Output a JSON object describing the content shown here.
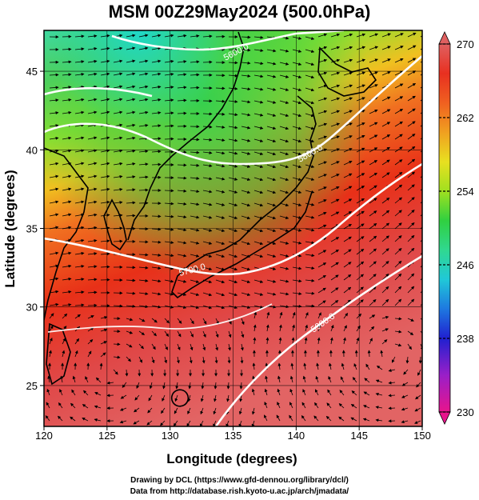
{
  "title": "MSM 00Z29May2024 (500.0hPa)",
  "x_axis": {
    "label": "Longitude (degrees)",
    "ticks": [
      "120",
      "125",
      "130",
      "135",
      "140",
      "145",
      "150"
    ],
    "range": [
      120,
      150
    ]
  },
  "y_axis": {
    "label": "Latitude  (degrees)",
    "ticks": [
      "25",
      "30",
      "35",
      "40",
      "45"
    ],
    "range": [
      22.4,
      47.6
    ]
  },
  "colorbar": {
    "labels": [
      "270",
      "262",
      "254",
      "246",
      "238",
      "230"
    ],
    "range": [
      230,
      270
    ],
    "colors": [
      "#e8148c",
      "#9a1fc8",
      "#2020d0",
      "#1e78e0",
      "#20c8d8",
      "#30d890",
      "#30d040",
      "#a0e020",
      "#e8e020",
      "#f0a020",
      "#f06020",
      "#e83020",
      "#e06060"
    ]
  },
  "contours": [
    {
      "label": "5600.0"
    },
    {
      "label": "5800.0"
    },
    {
      "label": "5700.0"
    },
    {
      "label": "5900.0"
    }
  ],
  "credits": {
    "line1": "Drawing by DCL (https://www.gfd-dennou.org/library/dcl/)",
    "line2": "Data from http://database.rish.kyoto-u.ac.jp/arch/jmadata/"
  }
}
